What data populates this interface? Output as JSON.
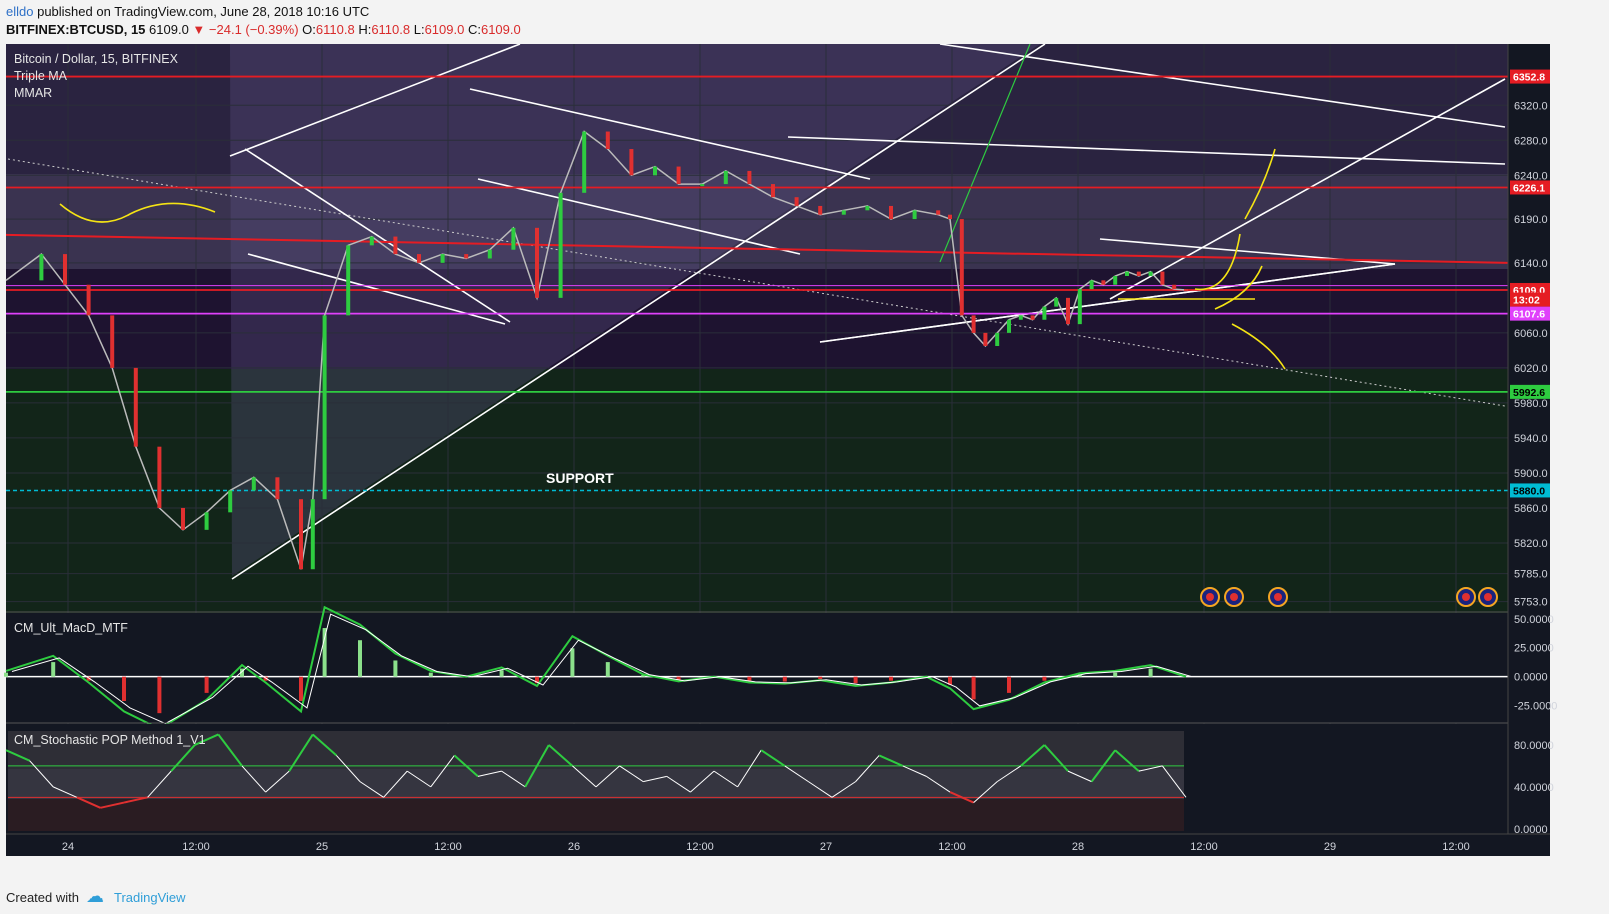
{
  "header": {
    "author": "elldo",
    "published": "published on TradingView.com, June 28, 2018 10:16 UTC",
    "symbol": "BITFINEX:BTCUSD, 15",
    "last": "6109.0",
    "change": "▼ −24.1 (−0.39%)",
    "o_label": "O:",
    "o": "6110.8",
    "h_label": "H:",
    "h": "6110.8",
    "l_label": "L:",
    "l": "6109.0",
    "c_label": "C:",
    "c": "6109.0"
  },
  "legend": {
    "title": "Bitcoin / Dollar, 15, BITFINEX",
    "ind1": "Triple MA",
    "ind2": "MMAR",
    "macd": "CM_Ult_MacD_MTF",
    "stoch": "CM_Stochastic POP Method 1_V1"
  },
  "annotation": "SUPPORT",
  "footer": {
    "created": "Created with",
    "brand": "TradingView"
  },
  "colors": {
    "bg": "#131722",
    "up": "#2ecc40",
    "down": "#e03030",
    "resistance": "#e51c23",
    "support_line": "#00bcd4",
    "trend": "#ffffff",
    "sketch": "#f5e414",
    "magenta": "#e040fb"
  },
  "chart_data": {
    "type": "line",
    "price_axis": {
      "ticks": [
        "6320.0",
        "6280.0",
        "6240.0",
        "6190.0",
        "6140.0",
        "6060.0",
        "6020.0",
        "5980.0",
        "5940.0",
        "5900.0",
        "5860.0",
        "5820.0",
        "5785.0",
        "5753.0"
      ],
      "ylim": [
        5740,
        6390
      ]
    },
    "x_axis": {
      "ticks": [
        "24",
        "12:00",
        "25",
        "12:00",
        "26",
        "12:00",
        "27",
        "12:00",
        "28",
        "12:00",
        "29",
        "12:00"
      ]
    },
    "price_levels": [
      {
        "label": "6352.8",
        "value": 6352.8,
        "color": "#e51c23"
      },
      {
        "label": "6226.1",
        "value": 6226.1,
        "color": "#e51c23"
      },
      {
        "label": "6109.0",
        "value": 6109.0,
        "color": "#e51c23"
      },
      {
        "label": "13:02",
        "value": 6098,
        "color": "#e51c23"
      },
      {
        "label": "6107.6",
        "value": 6082,
        "color": "#e040fb"
      },
      {
        "label": "5992.6",
        "value": 5992.6,
        "color": "#2ecc40"
      },
      {
        "label": "5880.0",
        "value": 5880.0,
        "color": "#00bcd4"
      }
    ],
    "price_series": [
      [
        0,
        6120
      ],
      [
        0.03,
        6150
      ],
      [
        0.05,
        6115
      ],
      [
        0.07,
        6080
      ],
      [
        0.09,
        6020
      ],
      [
        0.11,
        5930
      ],
      [
        0.13,
        5860
      ],
      [
        0.15,
        5835
      ],
      [
        0.17,
        5855
      ],
      [
        0.19,
        5880
      ],
      [
        0.21,
        5895
      ],
      [
        0.23,
        5870
      ],
      [
        0.25,
        5790
      ],
      [
        0.26,
        5870
      ],
      [
        0.27,
        6080
      ],
      [
        0.29,
        6160
      ],
      [
        0.31,
        6170
      ],
      [
        0.33,
        6150
      ],
      [
        0.35,
        6140
      ],
      [
        0.37,
        6150
      ],
      [
        0.39,
        6145
      ],
      [
        0.41,
        6155
      ],
      [
        0.43,
        6180
      ],
      [
        0.45,
        6100
      ],
      [
        0.47,
        6220
      ],
      [
        0.49,
        6290
      ],
      [
        0.51,
        6270
      ],
      [
        0.53,
        6240
      ],
      [
        0.55,
        6250
      ],
      [
        0.57,
        6230
      ],
      [
        0.59,
        6230
      ],
      [
        0.61,
        6245
      ],
      [
        0.63,
        6230
      ],
      [
        0.65,
        6215
      ],
      [
        0.67,
        6205
      ],
      [
        0.69,
        6195
      ],
      [
        0.71,
        6200
      ],
      [
        0.73,
        6205
      ],
      [
        0.75,
        6190
      ],
      [
        0.77,
        6200
      ],
      [
        0.79,
        6195
      ],
      [
        0.8,
        6190
      ],
      [
        0.81,
        6080
      ],
      [
        0.82,
        6060
      ],
      [
        0.83,
        6045
      ],
      [
        0.84,
        6060
      ],
      [
        0.85,
        6075
      ],
      [
        0.86,
        6080
      ],
      [
        0.87,
        6075
      ],
      [
        0.88,
        6090
      ],
      [
        0.89,
        6100
      ],
      [
        0.9,
        6070
      ],
      [
        0.91,
        6110
      ],
      [
        0.92,
        6120
      ],
      [
        0.93,
        6115
      ],
      [
        0.94,
        6125
      ],
      [
        0.95,
        6130
      ],
      [
        0.96,
        6125
      ],
      [
        0.97,
        6130
      ],
      [
        0.98,
        6115
      ],
      [
        0.99,
        6110
      ],
      [
        1.0,
        6109
      ]
    ],
    "macd_axis": {
      "ticks": [
        "50.0000",
        "25.0000",
        "0.0000",
        "-25.0000"
      ],
      "ylim": [
        -40,
        55
      ]
    },
    "macd_series": [
      [
        0,
        5
      ],
      [
        0.04,
        18
      ],
      [
        0.07,
        -5
      ],
      [
        0.1,
        -30
      ],
      [
        0.13,
        -45
      ],
      [
        0.17,
        -20
      ],
      [
        0.2,
        10
      ],
      [
        0.22,
        -5
      ],
      [
        0.25,
        -30
      ],
      [
        0.27,
        60
      ],
      [
        0.3,
        45
      ],
      [
        0.33,
        20
      ],
      [
        0.36,
        5
      ],
      [
        0.39,
        0
      ],
      [
        0.42,
        8
      ],
      [
        0.45,
        -8
      ],
      [
        0.48,
        35
      ],
      [
        0.51,
        18
      ],
      [
        0.54,
        2
      ],
      [
        0.57,
        -4
      ],
      [
        0.6,
        0
      ],
      [
        0.63,
        -5
      ],
      [
        0.66,
        -6
      ],
      [
        0.69,
        -3
      ],
      [
        0.72,
        -8
      ],
      [
        0.75,
        -5
      ],
      [
        0.78,
        0
      ],
      [
        0.8,
        -10
      ],
      [
        0.82,
        -28
      ],
      [
        0.85,
        -20
      ],
      [
        0.88,
        -5
      ],
      [
        0.91,
        3
      ],
      [
        0.94,
        5
      ],
      [
        0.97,
        10
      ],
      [
        1.0,
        0
      ]
    ],
    "stoch_axis": {
      "ticks": [
        "80.0000",
        "40.0000",
        "0.0000"
      ],
      "ylim": [
        -5,
        100
      ]
    },
    "stoch_series": [
      [
        0,
        75
      ],
      [
        0.02,
        65
      ],
      [
        0.04,
        40
      ],
      [
        0.06,
        30
      ],
      [
        0.08,
        20
      ],
      [
        0.1,
        25
      ],
      [
        0.12,
        30
      ],
      [
        0.14,
        55
      ],
      [
        0.16,
        80
      ],
      [
        0.18,
        90
      ],
      [
        0.2,
        60
      ],
      [
        0.22,
        35
      ],
      [
        0.24,
        55
      ],
      [
        0.26,
        90
      ],
      [
        0.28,
        70
      ],
      [
        0.3,
        45
      ],
      [
        0.32,
        30
      ],
      [
        0.34,
        55
      ],
      [
        0.36,
        40
      ],
      [
        0.38,
        70
      ],
      [
        0.4,
        50
      ],
      [
        0.42,
        55
      ],
      [
        0.44,
        40
      ],
      [
        0.46,
        80
      ],
      [
        0.48,
        60
      ],
      [
        0.5,
        40
      ],
      [
        0.52,
        60
      ],
      [
        0.54,
        45
      ],
      [
        0.56,
        50
      ],
      [
        0.58,
        35
      ],
      [
        0.6,
        55
      ],
      [
        0.62,
        40
      ],
      [
        0.64,
        75
      ],
      [
        0.66,
        60
      ],
      [
        0.68,
        45
      ],
      [
        0.7,
        30
      ],
      [
        0.72,
        45
      ],
      [
        0.74,
        70
      ],
      [
        0.76,
        60
      ],
      [
        0.78,
        50
      ],
      [
        0.8,
        35
      ],
      [
        0.82,
        25
      ],
      [
        0.84,
        45
      ],
      [
        0.86,
        60
      ],
      [
        0.88,
        80
      ],
      [
        0.9,
        55
      ],
      [
        0.92,
        45
      ],
      [
        0.94,
        75
      ],
      [
        0.96,
        55
      ],
      [
        0.98,
        60
      ],
      [
        1.0,
        30
      ]
    ]
  }
}
